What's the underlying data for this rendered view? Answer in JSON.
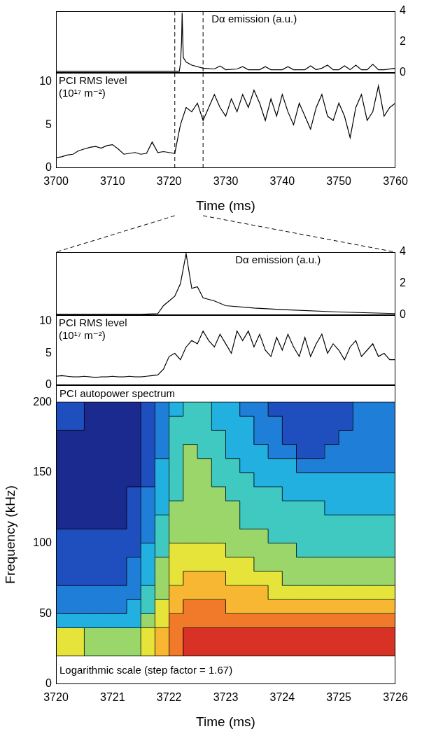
{
  "chart_data": [
    {
      "type": "line",
      "title": "Dα emission (a.u.)",
      "xlim": [
        3700,
        3760
      ],
      "y2lim": [
        0,
        4
      ],
      "y2ticks": [
        0,
        2,
        4
      ],
      "tick_labels": "y",
      "grid": false,
      "vlines": [
        3721,
        3726
      ],
      "x": [
        3700,
        3710,
        3720,
        3721.8,
        3722,
        3722.2,
        3722.3,
        3722.5,
        3723,
        3724,
        3726,
        3728,
        3729,
        3730,
        3732,
        3733,
        3734,
        3736,
        3737,
        3738,
        3740,
        3741,
        3742,
        3744,
        3745,
        3746,
        3747,
        3748,
        3749,
        3750,
        3751,
        3752,
        3753,
        3754,
        3755,
        3756,
        3757,
        3758,
        3760
      ],
      "series": [
        {
          "color": "#000000",
          "axis": "y2",
          "values": [
            0.1,
            0.1,
            0.1,
            0.1,
            0.6,
            2.0,
            3.9,
            1.0,
            0.7,
            0.5,
            0.3,
            0.25,
            0.45,
            0.2,
            0.25,
            0.4,
            0.2,
            0.2,
            0.4,
            0.2,
            0.2,
            0.4,
            0.2,
            0.2,
            0.45,
            0.2,
            0.3,
            0.5,
            0.2,
            0.2,
            0.45,
            0.2,
            0.5,
            0.2,
            0.2,
            0.55,
            0.2,
            0.2,
            0.3
          ]
        }
      ]
    },
    {
      "type": "line",
      "title": [
        "PCI RMS level",
        "(10¹⁷ m⁻²)"
      ],
      "x_title": "Time (ms)",
      "xlim": [
        3700,
        3760
      ],
      "xticks": [
        3700,
        3710,
        3720,
        3730,
        3740,
        3750,
        3760
      ],
      "ylim": [
        0,
        11
      ],
      "yticks": [
        0,
        5,
        10
      ],
      "grid": false,
      "vlines": [
        3721,
        3726
      ],
      "x": [
        3700,
        3701,
        3702,
        3703,
        3704,
        3705,
        3706,
        3707,
        3708,
        3709,
        3710,
        3711,
        3712,
        3713,
        3714,
        3715,
        3716,
        3717,
        3718,
        3719,
        3720,
        3721,
        3722,
        3723,
        3724,
        3725,
        3726,
        3727,
        3728,
        3729,
        3730,
        3731,
        3732,
        3733,
        3734,
        3735,
        3736,
        3737,
        3738,
        3739,
        3740,
        3741,
        3742,
        3743,
        3744,
        3745,
        3746,
        3747,
        3748,
        3749,
        3750,
        3751,
        3752,
        3753,
        3754,
        3755,
        3756,
        3757,
        3758,
        3759,
        3760
      ],
      "series": [
        {
          "color": "#000000",
          "values": [
            1.2,
            1.3,
            1.5,
            1.6,
            2.0,
            2.2,
            2.4,
            2.5,
            2.3,
            2.6,
            2.7,
            2.2,
            1.6,
            1.7,
            1.8,
            1.6,
            1.7,
            3.0,
            1.8,
            1.9,
            1.8,
            1.7,
            5.0,
            7.0,
            6.5,
            7.5,
            5.5,
            7.0,
            8.5,
            7.0,
            6.0,
            8.0,
            6.5,
            8.5,
            7.0,
            9.0,
            7.5,
            5.5,
            8.0,
            6.0,
            8.5,
            6.5,
            5.0,
            7.5,
            6.0,
            4.5,
            7.0,
            8.5,
            6.0,
            5.5,
            7.5,
            6.0,
            3.5,
            7.0,
            8.5,
            5.5,
            6.5,
            9.5,
            6.0,
            7.0,
            7.5
          ]
        }
      ]
    },
    {
      "type": "line",
      "title": "Dα emission (a.u.)",
      "xlim": [
        3720,
        3726
      ],
      "y2lim": [
        0,
        4
      ],
      "y2ticks": [
        0,
        2,
        4
      ],
      "tick_labels": "y",
      "grid": false,
      "x": [
        3720,
        3721.5,
        3721.8,
        3721.9,
        3722.0,
        3722.1,
        3722.2,
        3722.3,
        3722.4,
        3722.5,
        3722.6,
        3722.8,
        3723,
        3723.5,
        3724,
        3725,
        3726
      ],
      "series": [
        {
          "color": "#000000",
          "axis": "y2",
          "values": [
            0.05,
            0.05,
            0.1,
            0.6,
            0.9,
            1.2,
            2.0,
            3.9,
            1.7,
            1.8,
            1.1,
            0.9,
            0.6,
            0.45,
            0.35,
            0.2,
            0.1
          ]
        }
      ]
    },
    {
      "type": "line",
      "title": [
        "PCI RMS level",
        "(10¹⁷ m⁻²)"
      ],
      "xlim": [
        3720,
        3726
      ],
      "ylim": [
        0,
        11
      ],
      "yticks": [
        0,
        5,
        10
      ],
      "tick_labels": "y",
      "grid": false,
      "x": [
        3720,
        3720.1,
        3720.2,
        3720.3,
        3720.4,
        3720.5,
        3720.6,
        3720.7,
        3720.8,
        3720.9,
        3721,
        3721.1,
        3721.2,
        3721.3,
        3721.4,
        3721.5,
        3721.6,
        3721.7,
        3721.8,
        3721.9,
        3722,
        3722.1,
        3722.2,
        3722.3,
        3722.4,
        3722.5,
        3722.6,
        3722.7,
        3722.8,
        3722.9,
        3723,
        3723.1,
        3723.2,
        3723.3,
        3723.4,
        3723.5,
        3723.6,
        3723.7,
        3723.8,
        3723.9,
        3724,
        3724.1,
        3724.2,
        3724.3,
        3724.4,
        3724.5,
        3724.6,
        3724.7,
        3724.8,
        3724.9,
        3725,
        3725.1,
        3725.2,
        3725.3,
        3725.4,
        3725.5,
        3725.6,
        3725.7,
        3725.8,
        3725.9,
        3726
      ],
      "series": [
        {
          "color": "#000000",
          "values": [
            1.4,
            1.5,
            1.4,
            1.3,
            1.3,
            1.4,
            1.3,
            1.2,
            1.3,
            1.3,
            1.4,
            1.3,
            1.3,
            1.4,
            1.3,
            1.3,
            1.4,
            1.5,
            1.6,
            2.5,
            4.5,
            5.0,
            4.0,
            6.0,
            7.0,
            6.5,
            8.5,
            7.0,
            6.0,
            8.0,
            6.5,
            5.0,
            8.5,
            7.0,
            8.5,
            6.0,
            8.0,
            5.5,
            4.5,
            7.5,
            5.5,
            8.0,
            6.0,
            4.5,
            7.5,
            4.5,
            6.5,
            8.0,
            5.0,
            6.5,
            5.5,
            4.0,
            6.0,
            7.0,
            4.5,
            5.5,
            6.5,
            4.5,
            5.0,
            4.0,
            4.0
          ]
        }
      ]
    },
    {
      "type": "heatmap",
      "title": "PCI autopower spectrum",
      "annotation": "Logarithmic scale (step factor = 1.67)",
      "x_title": "Time (ms)",
      "y_title": "Frequency (kHz)",
      "xlim": [
        3720,
        3726
      ],
      "xticks": [
        3720,
        3721,
        3722,
        3723,
        3724,
        3725,
        3726
      ],
      "ylim": [
        0,
        212
      ],
      "yticks": [
        0,
        50,
        100,
        150,
        200
      ],
      "grid": false,
      "x_edges": [
        3720,
        3720.25,
        3720.5,
        3720.75,
        3721,
        3721.25,
        3721.5,
        3721.75,
        3722,
        3722.25,
        3722.5,
        3722.75,
        3723,
        3723.25,
        3723.5,
        3723.75,
        3724,
        3724.25,
        3724.5,
        3724.75,
        3725,
        3725.25,
        3725.5,
        3725.75,
        3726
      ],
      "y_edges": [
        20,
        30,
        40,
        50,
        60,
        70,
        80,
        90,
        100,
        110,
        120,
        130,
        140,
        150,
        160,
        170,
        180,
        190,
        200
      ],
      "colors": [
        "#1b2a8e",
        "#1f4fbf",
        "#1f7fd8",
        "#22b0e0",
        "#3fc9c0",
        "#9bd66a",
        "#e6e43a",
        "#f7b733",
        "#f07a2a",
        "#d83226"
      ],
      "z": [
        [
          6,
          6,
          5,
          5,
          5,
          5,
          6,
          7,
          8,
          9,
          9,
          9,
          9,
          9,
          9,
          9,
          9,
          9,
          9,
          9,
          9,
          9,
          9,
          9
        ],
        [
          6,
          6,
          5,
          5,
          5,
          5,
          6,
          7,
          8,
          9,
          9,
          9,
          9,
          9,
          9,
          9,
          9,
          9,
          9,
          9,
          9,
          9,
          9,
          9
        ],
        [
          3,
          3,
          3,
          3,
          3,
          3,
          5,
          6,
          8,
          8,
          8,
          8,
          8,
          8,
          8,
          8,
          8,
          8,
          8,
          8,
          8,
          8,
          8,
          8
        ],
        [
          2,
          2,
          2,
          2,
          2,
          3,
          4,
          6,
          7,
          8,
          8,
          8,
          7,
          7,
          7,
          7,
          7,
          7,
          7,
          7,
          7,
          7,
          7,
          7
        ],
        [
          2,
          2,
          2,
          2,
          2,
          2,
          4,
          5,
          7,
          7,
          7,
          7,
          7,
          7,
          7,
          6,
          6,
          6,
          6,
          6,
          6,
          6,
          6,
          6
        ],
        [
          1,
          1,
          1,
          1,
          1,
          2,
          3,
          5,
          6,
          7,
          7,
          7,
          6,
          6,
          6,
          6,
          5,
          5,
          5,
          5,
          5,
          5,
          5,
          5
        ],
        [
          1,
          1,
          1,
          1,
          1,
          2,
          3,
          5,
          6,
          6,
          6,
          6,
          6,
          6,
          5,
          5,
          5,
          5,
          5,
          5,
          5,
          5,
          5,
          5
        ],
        [
          1,
          1,
          1,
          1,
          1,
          1,
          3,
          4,
          6,
          6,
          6,
          6,
          5,
          5,
          5,
          5,
          5,
          4,
          4,
          4,
          4,
          4,
          4,
          4
        ],
        [
          1,
          1,
          1,
          1,
          1,
          1,
          2,
          4,
          5,
          5,
          5,
          5,
          5,
          5,
          5,
          4,
          4,
          4,
          4,
          4,
          4,
          4,
          4,
          4
        ],
        [
          0,
          0,
          0,
          0,
          0,
          1,
          2,
          4,
          5,
          5,
          5,
          5,
          5,
          4,
          4,
          4,
          4,
          4,
          4,
          4,
          4,
          4,
          4,
          4
        ],
        [
          0,
          0,
          0,
          0,
          0,
          1,
          2,
          3,
          5,
          5,
          5,
          5,
          5,
          4,
          4,
          4,
          4,
          4,
          4,
          3,
          3,
          3,
          3,
          3
        ],
        [
          0,
          0,
          0,
          0,
          0,
          1,
          2,
          3,
          4,
          5,
          5,
          5,
          4,
          4,
          4,
          4,
          3,
          3,
          3,
          3,
          3,
          3,
          3,
          3
        ],
        [
          0,
          0,
          0,
          0,
          0,
          0,
          1,
          3,
          4,
          5,
          5,
          4,
          4,
          4,
          3,
          3,
          3,
          3,
          3,
          3,
          3,
          3,
          3,
          3
        ],
        [
          0,
          0,
          0,
          0,
          0,
          0,
          1,
          3,
          4,
          5,
          5,
          4,
          4,
          3,
          3,
          3,
          3,
          2,
          2,
          2,
          2,
          2,
          2,
          2
        ],
        [
          0,
          0,
          0,
          0,
          0,
          0,
          1,
          2,
          4,
          5,
          4,
          4,
          3,
          3,
          3,
          2,
          2,
          1,
          1,
          2,
          2,
          2,
          2,
          2
        ],
        [
          0,
          0,
          0,
          0,
          0,
          0,
          1,
          2,
          4,
          4,
          4,
          4,
          3,
          3,
          2,
          2,
          1,
          1,
          1,
          1,
          2,
          2,
          2,
          2
        ],
        [
          1,
          1,
          0,
          0,
          0,
          0,
          1,
          2,
          4,
          4,
          4,
          3,
          3,
          3,
          2,
          2,
          1,
          1,
          1,
          1,
          1,
          2,
          2,
          2
        ],
        [
          1,
          1,
          0,
          0,
          0,
          0,
          1,
          2,
          3,
          4,
          4,
          3,
          3,
          2,
          2,
          1,
          1,
          1,
          1,
          1,
          1,
          2,
          2,
          2
        ]
      ]
    }
  ]
}
